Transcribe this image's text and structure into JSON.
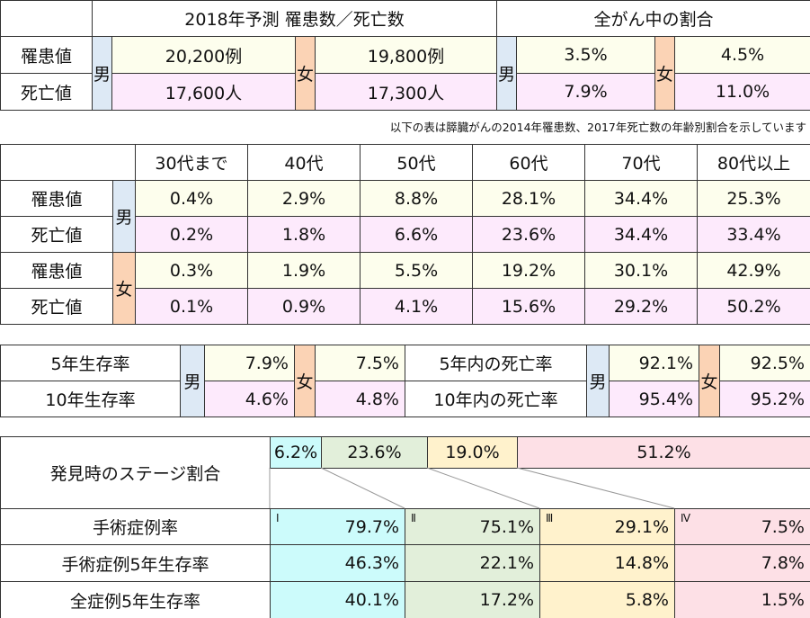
{
  "table1": {
    "header": [
      "2018年予測 罹患数／死亡数",
      "全がん中の割合"
    ],
    "sex": [
      "男",
      "女",
      "男",
      "女"
    ],
    "rows": [
      {
        "label": "罹患値",
        "values": [
          "20,200例",
          "19,800例",
          "3.5%",
          "4.5%"
        ]
      },
      {
        "label": "死亡値",
        "values": [
          "17,600人",
          "17,300人",
          "7.9%",
          "11.0%"
        ]
      }
    ]
  },
  "note": "以下の表は膵臓がんの2014年罹患数、2017年死亡数の年齢別割合を示しています",
  "table2": {
    "header": [
      "30代まで",
      "40代",
      "50代",
      "60代",
      "70代",
      "80代以上"
    ],
    "sex": [
      "男",
      "女"
    ],
    "rows": [
      {
        "label": "罹患値",
        "values": [
          "0.4%",
          "2.9%",
          "8.8%",
          "28.1%",
          "34.4%",
          "25.3%"
        ]
      },
      {
        "label": "死亡値",
        "values": [
          "0.2%",
          "1.8%",
          "6.6%",
          "23.6%",
          "34.4%",
          "33.4%"
        ]
      },
      {
        "label": "罹患値",
        "values": [
          "0.3%",
          "1.9%",
          "5.5%",
          "19.2%",
          "30.1%",
          "42.9%"
        ]
      },
      {
        "label": "死亡値",
        "values": [
          "0.1%",
          "0.9%",
          "4.1%",
          "15.6%",
          "29.2%",
          "50.2%"
        ]
      }
    ]
  },
  "table3": {
    "sex": [
      "男",
      "女",
      "男",
      "女"
    ],
    "rows": [
      {
        "labels": [
          "5年生存率",
          "5年内の死亡率"
        ],
        "values": [
          "7.9%",
          "7.5%",
          "92.1%",
          "92.5%"
        ]
      },
      {
        "labels": [
          "10年生存率",
          "10年内の死亡率"
        ],
        "values": [
          "4.6%",
          "4.8%",
          "95.4%",
          "95.2%"
        ]
      }
    ]
  },
  "table4": {
    "title": "発見時のステージ割合",
    "stage_shares": [
      "6.2%",
      "23.6%",
      "19.0%",
      "51.2%"
    ],
    "stages": [
      "Ⅰ",
      "Ⅱ",
      "Ⅲ",
      "Ⅳ"
    ],
    "rows": [
      {
        "label": "手術症例率",
        "values": [
          "79.7%",
          "75.1%",
          "29.1%",
          "7.5%"
        ]
      },
      {
        "label": "手術症例5年生存率",
        "values": [
          "46.3%",
          "22.1%",
          "14.8%",
          "7.8%"
        ]
      },
      {
        "label": "全症例5年生存率",
        "values": [
          "40.1%",
          "17.2%",
          "5.8%",
          "1.5%"
        ]
      }
    ]
  }
}
